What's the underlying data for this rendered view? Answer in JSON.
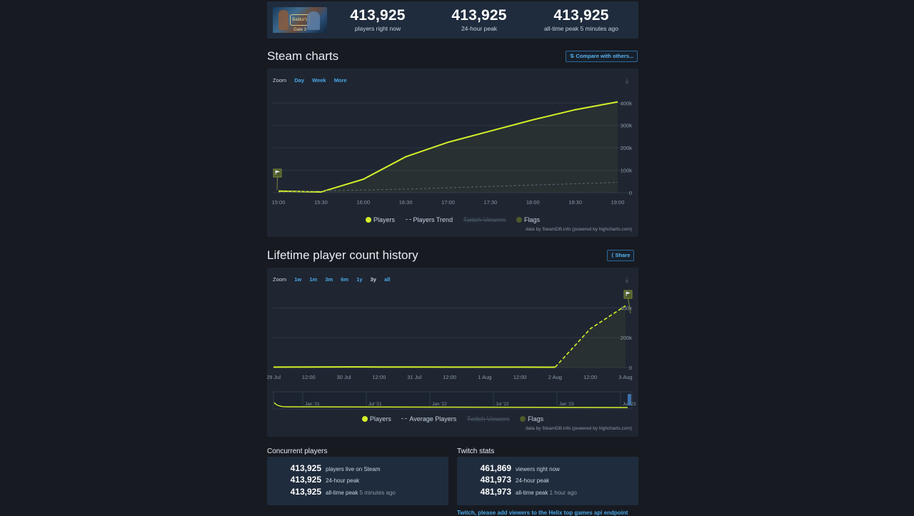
{
  "header": {
    "game_logo_text": "Baldur's Gate 3",
    "stats": [
      {
        "value": "413,925",
        "label": "players right now"
      },
      {
        "value": "413,925",
        "label": "24-hour peak"
      },
      {
        "value": "413,925",
        "label": "all-time peak 5 minutes ago"
      }
    ]
  },
  "steam_charts": {
    "title": "Steam charts",
    "compare_button": "Compare with others...",
    "zoom_label": "Zoom",
    "zoom_options": [
      "Day",
      "Week",
      "More"
    ],
    "legend": [
      "Players",
      "Players Trend",
      "Twitch Viewers",
      "Flags"
    ],
    "credits": "data by SteamDB.info (powered by highcharts.com)"
  },
  "lifetime": {
    "title": "Lifetime player count history",
    "share_button": "Share",
    "zoom_label": "Zoom",
    "zoom_options": [
      "1w",
      "1m",
      "3m",
      "6m",
      "1y",
      "3y",
      "all"
    ],
    "legend": [
      "Players",
      "Average Players",
      "Twitch Viewers",
      "Flags"
    ],
    "credits": "data by SteamDB.info (powered by highcharts.com)",
    "navigator_labels": [
      "Jan '21",
      "Jul '21",
      "Jan '22",
      "Jul '22",
      "Jan '23",
      "Jul '23"
    ]
  },
  "concurrent": {
    "title": "Concurrent players",
    "rows": [
      {
        "value": "413,925",
        "label": "players live on Steam",
        "extra": ""
      },
      {
        "value": "413,925",
        "label": "24-hour peak",
        "extra": ""
      },
      {
        "value": "413,925",
        "label": "all-time peak",
        "extra": "5 minutes ago"
      }
    ]
  },
  "twitch": {
    "title": "Twitch stats",
    "rows": [
      {
        "value": "461,869",
        "label": "viewers right now",
        "extra": ""
      },
      {
        "value": "481,973",
        "label": "24-hour peak",
        "extra": ""
      },
      {
        "value": "481,973",
        "label": "all-time peak",
        "extra": "1 hour ago"
      }
    ],
    "link_text": "Twitch, please add viewers to the Helix top games api endpoint"
  },
  "colors": {
    "accent_line": "#d4ef2a",
    "link": "#4aa8e8",
    "panel": "#1f2632"
  },
  "chart_data": [
    {
      "type": "line",
      "title": "Steam charts",
      "x": [
        "15:00",
        "15:30",
        "16:00",
        "16:30",
        "17:00",
        "17:30",
        "18:00",
        "18:30",
        "19:00"
      ],
      "series": [
        {
          "name": "Players",
          "values": [
            7000,
            3000,
            60000,
            160000,
            225000,
            275000,
            325000,
            370000,
            405000
          ]
        },
        {
          "name": "Players Trend",
          "values": [
            2000,
            8000,
            12000,
            16000,
            22000,
            28000,
            34000,
            40000,
            46000
          ]
        }
      ],
      "y_ticks": [
        "0",
        "100k",
        "200k",
        "300k",
        "400k"
      ],
      "ylim": [
        0,
        420000
      ],
      "flags": 1,
      "grid": true,
      "legend_position": "bottom"
    },
    {
      "type": "line",
      "title": "Lifetime player count history",
      "x": [
        "29 Jul",
        "12:00",
        "30 Jul",
        "12:00",
        "31 Jul",
        "12:00",
        "1 Aug",
        "12:00",
        "2 Aug",
        "12:00",
        "3 Aug"
      ],
      "series": [
        {
          "name": "Players",
          "values": [
            3000,
            3500,
            4000,
            3800,
            3500,
            3200,
            3000,
            2800,
            2500,
            260000,
            413925
          ]
        }
      ],
      "y_ticks": [
        "0",
        "200k",
        "400k"
      ],
      "ylim": [
        0,
        440000
      ],
      "flags": 1,
      "grid": true,
      "legend_position": "bottom"
    }
  ]
}
